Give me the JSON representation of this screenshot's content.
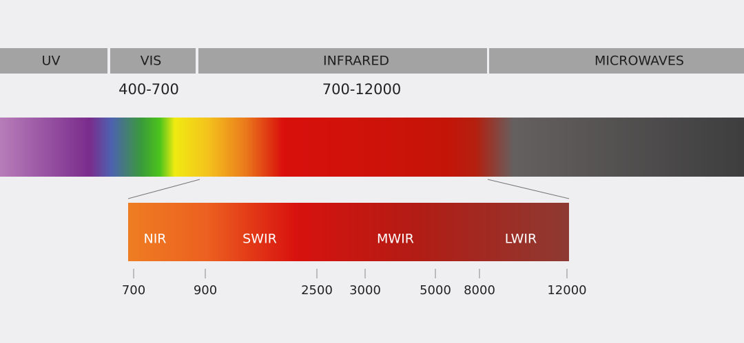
{
  "bands": [
    {
      "label": "UV"
    },
    {
      "label": "VIS",
      "range": "400-700"
    },
    {
      "label": "INFRARED",
      "range": "700-12000"
    },
    {
      "label": "MICROWAVES"
    }
  ],
  "infrared_subbands": [
    "NIR",
    "SWIR",
    "MWIR",
    "LWIR"
  ],
  "scale_ticks": [
    700,
    900,
    2500,
    3000,
    5000,
    8000,
    12000
  ]
}
